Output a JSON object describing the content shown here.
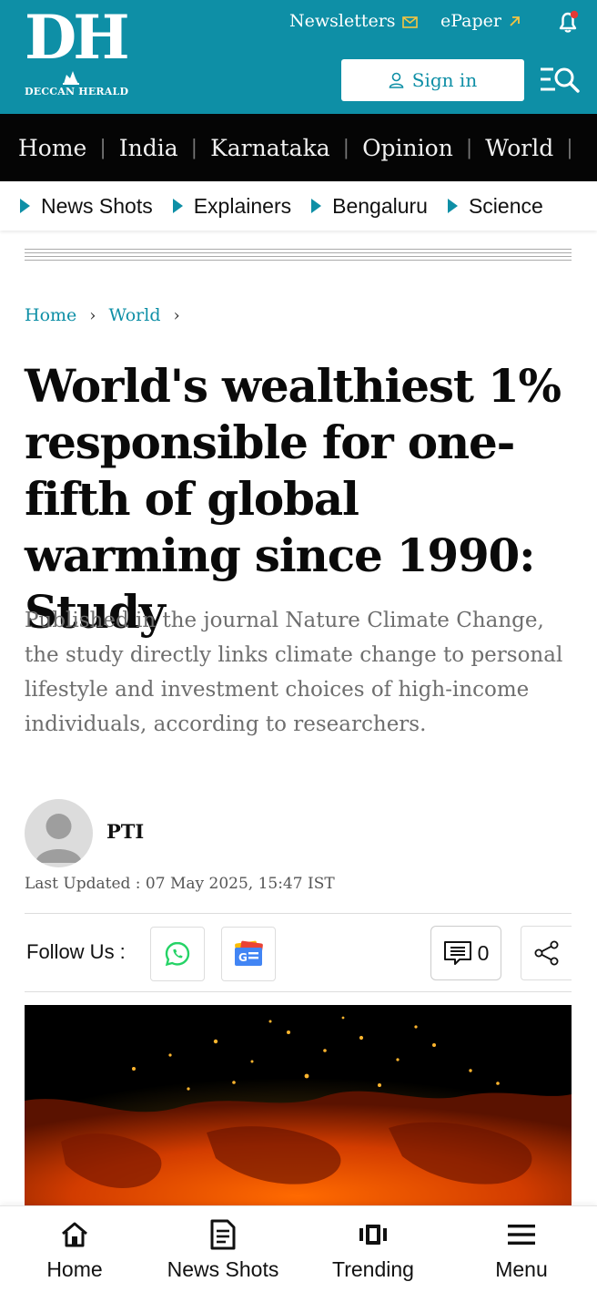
{
  "colors": {
    "brand": "#0e8fa6",
    "nav_bg": "#050505",
    "bell_dot": "#e53935"
  },
  "logo": {
    "mark": "DH",
    "name": "DECCAN HERALD"
  },
  "header": {
    "newsletters_label": "Newsletters",
    "epaper_label": "ePaper",
    "signin_label": "Sign in",
    "icons": [
      "mail-icon",
      "arrow-up-right-icon",
      "bell-icon",
      "user-icon",
      "menu-search-icon"
    ]
  },
  "main_nav": [
    "Home",
    "India",
    "Karnataka",
    "Opinion",
    "World"
  ],
  "sub_nav": [
    "News Shots",
    "Explainers",
    "Bengaluru",
    "Science"
  ],
  "breadcrumb": [
    "Home",
    "World"
  ],
  "article": {
    "headline": "World's wealthiest 1% responsible for one-fifth of global warming since 1990: Study",
    "summary": "Published in the journal Nature Climate Change, the study directly links climate change to personal lifestyle and investment choices of high-income individuals, according to researchers.",
    "author": "PTI",
    "last_updated": "Last Updated : 07 May 2025, 15:47 IST"
  },
  "follow": {
    "label": "Follow Us :",
    "comment_count": "0",
    "icons": [
      "whatsapp-icon",
      "google-news-icon",
      "comment-icon",
      "share-icon"
    ]
  },
  "bottom_nav": [
    {
      "label": "Home",
      "icon": "home-icon"
    },
    {
      "label": "News Shots",
      "icon": "document-icon"
    },
    {
      "label": "Trending",
      "icon": "trending-icon"
    },
    {
      "label": "Menu",
      "icon": "hamburger-icon"
    }
  ]
}
